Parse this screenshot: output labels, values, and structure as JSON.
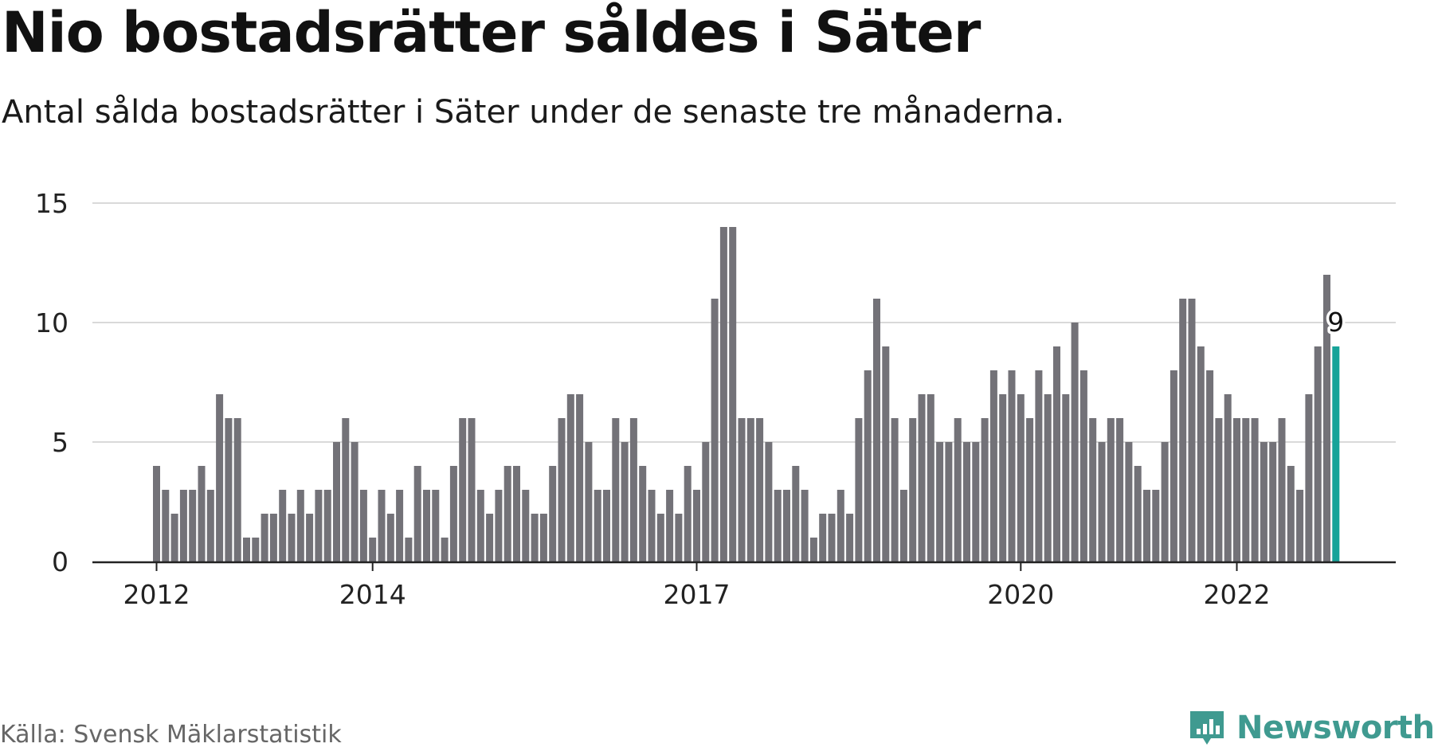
{
  "title": "Nio bostadsrätter såldes i Säter",
  "subtitle": "Antal sålda bostadsrätter i Säter under de senaste tre månaderna.",
  "source": "Källa: Svensk Mäklarstatistik",
  "brand": "Newsworthy",
  "colors": {
    "bar": "#737278",
    "highlight": "#17a399",
    "grid": "#d9d9d9",
    "axis": "#222222",
    "brand": "#3f9a90"
  },
  "chart_data": {
    "type": "bar",
    "x_tick_labels": [
      "2012",
      "2014",
      "2017",
      "2020",
      "2022"
    ],
    "x_tick_positions": [
      0,
      24,
      60,
      96,
      120
    ],
    "values": [
      4,
      3,
      2,
      3,
      3,
      4,
      3,
      7,
      6,
      6,
      1,
      1,
      2,
      2,
      3,
      2,
      3,
      2,
      3,
      3,
      5,
      6,
      5,
      3,
      1,
      3,
      2,
      3,
      1,
      4,
      3,
      3,
      1,
      4,
      6,
      6,
      3,
      2,
      3,
      4,
      4,
      3,
      2,
      2,
      4,
      6,
      7,
      7,
      5,
      3,
      3,
      6,
      5,
      6,
      4,
      3,
      2,
      3,
      2,
      4,
      3,
      5,
      11,
      14,
      14,
      6,
      6,
      6,
      5,
      3,
      3,
      4,
      3,
      1,
      2,
      2,
      3,
      2,
      6,
      8,
      11,
      9,
      6,
      3,
      6,
      7,
      7,
      5,
      5,
      6,
      5,
      5,
      6,
      8,
      7,
      8,
      7,
      6,
      8,
      7,
      9,
      7,
      10,
      8,
      6,
      5,
      6,
      6,
      5,
      4,
      3,
      3,
      5,
      8,
      11,
      11,
      9,
      8,
      6,
      7,
      6,
      6,
      6,
      5,
      5,
      6,
      4,
      3,
      7,
      9,
      12,
      9
    ],
    "highlight_index": 131,
    "data_label": "9",
    "y_ticks": [
      0,
      5,
      10,
      15
    ],
    "ylim": [
      0,
      15
    ],
    "grid": true,
    "legend": "none"
  }
}
